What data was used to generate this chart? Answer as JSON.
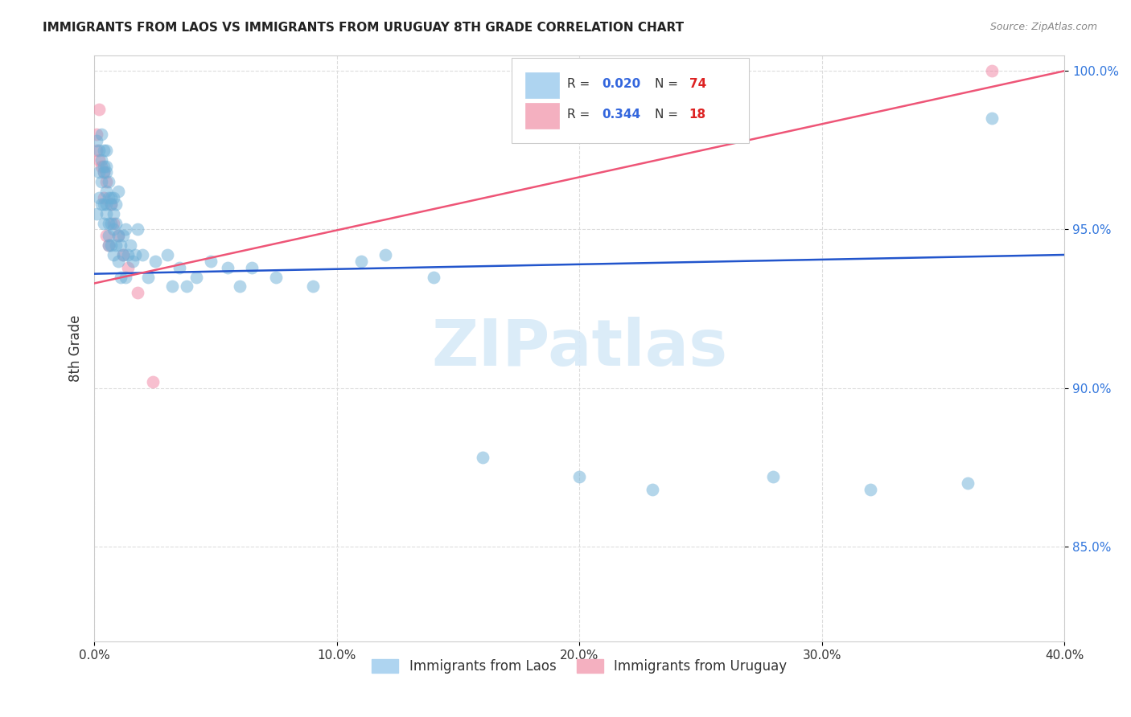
{
  "title": "IMMIGRANTS FROM LAOS VS IMMIGRANTS FROM URUGUAY 8TH GRADE CORRELATION CHART",
  "source": "Source: ZipAtlas.com",
  "ylabel": "8th Grade",
  "x_min": 0.0,
  "x_max": 0.4,
  "y_min": 0.82,
  "y_max": 1.005,
  "x_ticks": [
    0.0,
    0.1,
    0.2,
    0.3,
    0.4
  ],
  "x_tick_labels": [
    "0.0%",
    "10.0%",
    "20.0%",
    "30.0%",
    "40.0%"
  ],
  "y_ticks": [
    0.85,
    0.9,
    0.95,
    1.0
  ],
  "y_tick_labels": [
    "85.0%",
    "90.0%",
    "95.0%",
    "100.0%"
  ],
  "laos_color": "#6BAED6",
  "uruguay_color": "#F080A0",
  "laos_line_color": "#2255CC",
  "uruguay_line_color": "#EE5577",
  "laos_legend_color": "#AED4F0",
  "uruguay_legend_color": "#F4B0C0",
  "watermark_text": "ZIPatlas",
  "watermark_color": "#D8EAF8",
  "laos_R": "0.020",
  "laos_N": "74",
  "uruguay_R": "0.344",
  "uruguay_N": "18",
  "laos_line_y0": 0.936,
  "laos_line_y1": 0.942,
  "uruguay_line_y0": 0.933,
  "uruguay_line_y1": 1.0,
  "laos_x": [
    0.001,
    0.001,
    0.002,
    0.002,
    0.002,
    0.003,
    0.003,
    0.003,
    0.003,
    0.004,
    0.004,
    0.004,
    0.004,
    0.004,
    0.005,
    0.005,
    0.005,
    0.005,
    0.005,
    0.005,
    0.006,
    0.006,
    0.006,
    0.006,
    0.006,
    0.007,
    0.007,
    0.007,
    0.007,
    0.008,
    0.008,
    0.008,
    0.008,
    0.009,
    0.009,
    0.009,
    0.01,
    0.01,
    0.01,
    0.011,
    0.011,
    0.012,
    0.012,
    0.013,
    0.013,
    0.014,
    0.015,
    0.016,
    0.017,
    0.018,
    0.02,
    0.022,
    0.025,
    0.03,
    0.032,
    0.035,
    0.038,
    0.042,
    0.048,
    0.055,
    0.06,
    0.065,
    0.075,
    0.09,
    0.11,
    0.12,
    0.14,
    0.16,
    0.2,
    0.23,
    0.28,
    0.32,
    0.36,
    0.37
  ],
  "laos_y": [
    0.978,
    0.955,
    0.975,
    0.968,
    0.96,
    0.98,
    0.972,
    0.965,
    0.958,
    0.975,
    0.968,
    0.958,
    0.97,
    0.952,
    0.975,
    0.968,
    0.955,
    0.962,
    0.97,
    0.958,
    0.945,
    0.952,
    0.96,
    0.948,
    0.965,
    0.952,
    0.96,
    0.945,
    0.958,
    0.95,
    0.942,
    0.96,
    0.955,
    0.945,
    0.952,
    0.958,
    0.94,
    0.948,
    0.962,
    0.945,
    0.935,
    0.948,
    0.942,
    0.95,
    0.935,
    0.942,
    0.945,
    0.94,
    0.942,
    0.95,
    0.942,
    0.935,
    0.94,
    0.942,
    0.932,
    0.938,
    0.932,
    0.935,
    0.94,
    0.938,
    0.932,
    0.938,
    0.935,
    0.932,
    0.94,
    0.942,
    0.935,
    0.878,
    0.872,
    0.868,
    0.872,
    0.868,
    0.87,
    0.985
  ],
  "uruguay_x": [
    0.001,
    0.001,
    0.002,
    0.002,
    0.003,
    0.004,
    0.004,
    0.005,
    0.005,
    0.006,
    0.007,
    0.008,
    0.01,
    0.012,
    0.014,
    0.018,
    0.024,
    0.37
  ],
  "uruguay_y": [
    0.98,
    0.975,
    0.988,
    0.972,
    0.97,
    0.968,
    0.96,
    0.965,
    0.948,
    0.945,
    0.958,
    0.952,
    0.948,
    0.942,
    0.938,
    0.93,
    0.902,
    1.0
  ],
  "background_color": "#FFFFFF",
  "grid_color": "#DDDDDD"
}
